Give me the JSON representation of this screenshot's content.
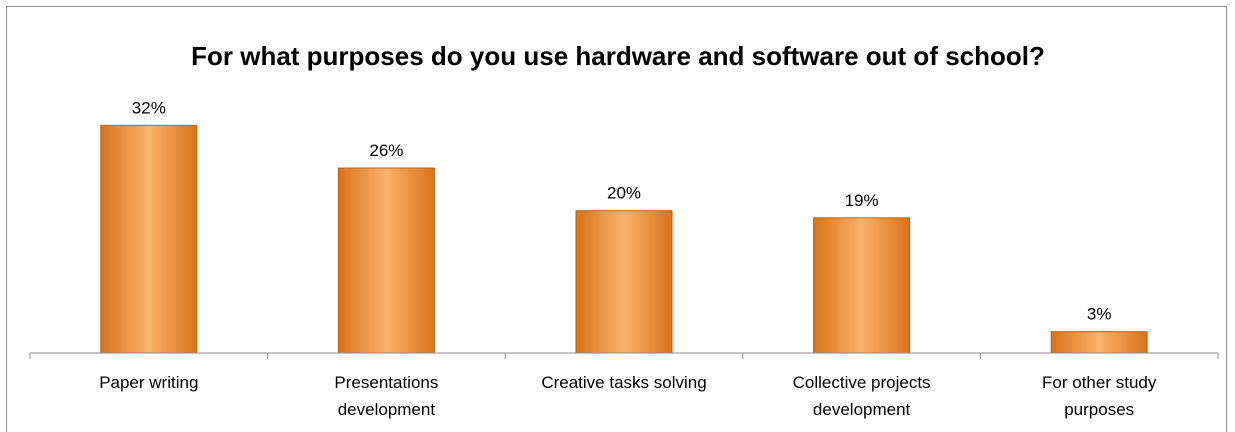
{
  "chart_data": {
    "type": "bar",
    "title": "For what purposes do you use hardware and software out of school?",
    "categories": [
      [
        "Paper writing"
      ],
      [
        "Presentations",
        "development"
      ],
      [
        "Creative tasks solving"
      ],
      [
        "Collective projects",
        "development"
      ],
      [
        "For other study",
        "purposes"
      ]
    ],
    "values": [
      32,
      26,
      20,
      19,
      3
    ],
    "data_labels": [
      "32%",
      "26%",
      "20%",
      "19%",
      "3%"
    ],
    "value_unit": "%",
    "xlabel": "",
    "ylabel": "",
    "ylim": [
      0,
      35
    ],
    "y_axis_visible": false,
    "grid": false,
    "legend": "none",
    "colors": {
      "bar_light": "#fbb26a",
      "bar_mid": "#f79433",
      "bar_dark": "#d8731a",
      "bar_edge": "#b86417",
      "axis": "#8c8c8c"
    }
  }
}
